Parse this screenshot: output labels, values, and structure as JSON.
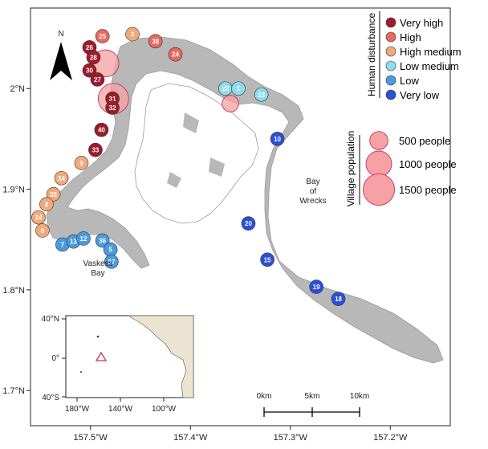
{
  "axes": {
    "x_ticks": [
      {
        "lon": -157.5,
        "label": "157.5°W"
      },
      {
        "lon": -157.4,
        "label": "157.4°W"
      },
      {
        "lon": -157.3,
        "label": "157.3°W"
      },
      {
        "lon": -157.2,
        "label": "157.2°W"
      }
    ],
    "y_ticks": [
      {
        "lat": 2.0,
        "label": "2°N"
      },
      {
        "lat": 1.9,
        "label": "1.9°N"
      },
      {
        "lat": 1.8,
        "label": "1.8°N"
      },
      {
        "lat": 1.7,
        "label": "1.7°N"
      }
    ],
    "lon_range": [
      -157.56,
      -157.14
    ],
    "lat_range": [
      1.665,
      2.08
    ]
  },
  "north_arrow": {
    "label": "N"
  },
  "places": {
    "bay_of_wrecks": [
      "Bay",
      "of",
      "Wrecks"
    ],
    "vaskess_bay": [
      "Vaskess",
      "Bay"
    ]
  },
  "disturbance_legend": {
    "title": "Human disturbance",
    "levels": [
      {
        "label": "Very high",
        "color": "#9e1b2b"
      },
      {
        "label": "High",
        "color": "#e8695f"
      },
      {
        "label": "High medium",
        "color": "#f2a97a"
      },
      {
        "label": "Low medium",
        "color": "#8fdcef"
      },
      {
        "label": "Low",
        "color": "#4a9be0"
      },
      {
        "label": "Very low",
        "color": "#2b4fd9"
      }
    ]
  },
  "population_legend": {
    "title": "Village population",
    "items": [
      {
        "label": "500 people",
        "people": 500
      },
      {
        "label": "1000 people",
        "people": 1000
      },
      {
        "label": "1500 people",
        "people": 1500
      }
    ],
    "fill": "#f7a0a6"
  },
  "villages": [
    {
      "lon": -157.485,
      "lat": 2.025,
      "people": 1100
    },
    {
      "lon": -157.477,
      "lat": 1.99,
      "people": 1400
    },
    {
      "lon": -157.36,
      "lat": 1.985,
      "people": 420
    }
  ],
  "sites": [
    {
      "id": "25",
      "lon": -157.488,
      "lat": 2.052,
      "level": 1
    },
    {
      "id": "3",
      "lon": -157.458,
      "lat": 2.054,
      "level": 2
    },
    {
      "id": "38",
      "lon": -157.435,
      "lat": 2.047,
      "level": 1
    },
    {
      "id": "24",
      "lon": -157.415,
      "lat": 2.034,
      "level": 1
    },
    {
      "id": "26",
      "lon": -157.501,
      "lat": 2.041,
      "level": 0
    },
    {
      "id": "28",
      "lon": -157.497,
      "lat": 2.031,
      "level": 0
    },
    {
      "id": "30",
      "lon": -157.501,
      "lat": 2.018,
      "level": 0
    },
    {
      "id": "27",
      "lon": -157.493,
      "lat": 2.009,
      "level": 0
    },
    {
      "id": "31",
      "lon": -157.478,
      "lat": 1.99,
      "level": 0
    },
    {
      "id": "32",
      "lon": -157.478,
      "lat": 1.981,
      "level": 0
    },
    {
      "id": "40",
      "lon": -157.489,
      "lat": 1.959,
      "level": 0
    },
    {
      "id": "33",
      "lon": -157.495,
      "lat": 1.939,
      "level": 0
    },
    {
      "id": "9",
      "lon": -157.509,
      "lat": 1.926,
      "level": 2
    },
    {
      "id": "34",
      "lon": -157.529,
      "lat": 1.911,
      "level": 2
    },
    {
      "id": "35",
      "lon": -157.537,
      "lat": 1.895,
      "level": 2
    },
    {
      "id": "8",
      "lon": -157.544,
      "lat": 1.885,
      "level": 2
    },
    {
      "id": "14",
      "lon": -157.552,
      "lat": 1.872,
      "level": 2
    },
    {
      "id": "6",
      "lon": -157.548,
      "lat": 1.859,
      "level": 2
    },
    {
      "id": "7",
      "lon": -157.528,
      "lat": 1.845,
      "level": 4
    },
    {
      "id": "13",
      "lon": -157.517,
      "lat": 1.848,
      "level": 4
    },
    {
      "id": "12",
      "lon": -157.507,
      "lat": 1.851,
      "level": 4
    },
    {
      "id": "36",
      "lon": -157.488,
      "lat": 1.849,
      "level": 4
    },
    {
      "id": "5",
      "lon": -157.48,
      "lat": 1.84,
      "level": 4
    },
    {
      "id": "37",
      "lon": -157.479,
      "lat": 1.828,
      "level": 4
    },
    {
      "id": "22",
      "lon": -157.365,
      "lat": 2.0,
      "level": 3
    },
    {
      "id": "1",
      "lon": -157.352,
      "lat": 2.0,
      "level": 3
    },
    {
      "id": "23",
      "lon": -157.329,
      "lat": 1.994,
      "level": 3
    },
    {
      "id": "10",
      "lon": -157.313,
      "lat": 1.95,
      "level": 5
    },
    {
      "id": "20",
      "lon": -157.342,
      "lat": 1.866,
      "level": 5
    },
    {
      "id": "15",
      "lon": -157.323,
      "lat": 1.83,
      "level": 5
    },
    {
      "id": "19",
      "lon": -157.274,
      "lat": 1.803,
      "level": 5
    },
    {
      "id": "18",
      "lon": -157.252,
      "lat": 1.791,
      "level": 5
    }
  ],
  "inset": {
    "y_ticks": [
      "40°N",
      "0°",
      "40°S"
    ],
    "x_ticks": [
      "180°W",
      "140°W",
      "100°W"
    ],
    "marker_color": "#c0394b"
  },
  "scale_bar": {
    "labels": [
      "0km",
      "5km",
      "10km"
    ]
  }
}
